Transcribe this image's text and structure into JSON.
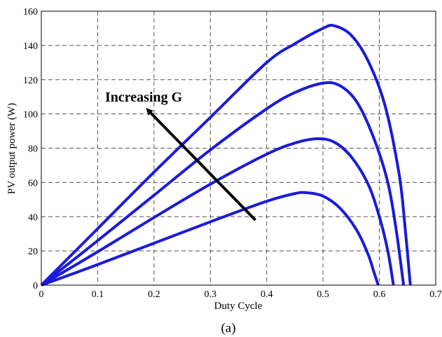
{
  "chart_data": {
    "type": "line",
    "xlabel": "Duty Cycle",
    "ylabel": "PV output power (W)",
    "caption": "(a)",
    "annotation": "Increasing G",
    "xlim": [
      0,
      0.7
    ],
    "ylim": [
      0,
      160
    ],
    "xticks": [
      "0",
      "0.1",
      "0.2",
      "0.3",
      "0.4",
      "0.5",
      "0.6",
      "0.7"
    ],
    "yticks": [
      "0",
      "20",
      "40",
      "60",
      "80",
      "100",
      "120",
      "140",
      "160"
    ],
    "grid": true,
    "line_color": "#1a1adc",
    "arrow": {
      "from": [
        0.38,
        38
      ],
      "to": [
        0.19,
        102
      ]
    },
    "series": [
      {
        "x": [
          0,
          0.1,
          0.2,
          0.3,
          0.4,
          0.45,
          0.47,
          0.5,
          0.53,
          0.56,
          0.58,
          0.59,
          0.598
        ],
        "values": [
          0,
          12,
          24.5,
          37,
          49,
          53.5,
          54,
          52,
          45,
          32,
          18,
          8,
          0
        ]
      },
      {
        "x": [
          0,
          0.1,
          0.2,
          0.3,
          0.4,
          0.45,
          0.49,
          0.52,
          0.55,
          0.58,
          0.6,
          0.615,
          0.625
        ],
        "values": [
          0,
          19.5,
          39.5,
          59,
          76.5,
          83,
          85.5,
          83.5,
          75,
          59,
          40,
          20,
          0
        ]
      },
      {
        "x": [
          0,
          0.1,
          0.2,
          0.3,
          0.4,
          0.45,
          0.5,
          0.53,
          0.56,
          0.59,
          0.615,
          0.63,
          0.643
        ],
        "values": [
          0,
          26,
          52.5,
          79,
          103,
          112.5,
          118,
          116.5,
          107,
          86,
          60,
          32,
          0
        ]
      },
      {
        "x": [
          0,
          0.1,
          0.2,
          0.3,
          0.4,
          0.45,
          0.5,
          0.52,
          0.55,
          0.58,
          0.61,
          0.635,
          0.645,
          0.655
        ],
        "values": [
          0,
          33,
          66,
          98,
          130,
          141,
          150,
          151.5,
          146,
          131,
          105,
          65,
          36,
          0
        ]
      }
    ]
  }
}
